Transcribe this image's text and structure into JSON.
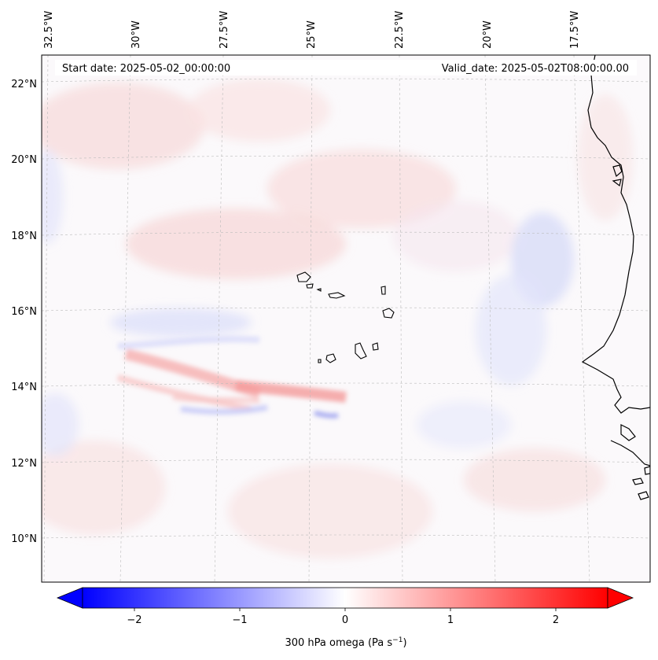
{
  "map": {
    "start_date": "Start date: 2025-05-02_00:00:00",
    "valid_date": "Valid_date: 2025-05-02T08:00:00.00",
    "lon_labels": [
      "32.5°W",
      "30°W",
      "27.5°W",
      "25°W",
      "22.5°W",
      "20°W",
      "17.5°W"
    ],
    "lat_labels": [
      "22°N",
      "20°N",
      "18°N",
      "16°N",
      "14°N",
      "12°N",
      "10°N"
    ]
  },
  "colorbar": {
    "label": "300 hPa omega (Pa s",
    "label_sup": "−1",
    "label_end": ")",
    "ticks": [
      "−2",
      "−1",
      "0",
      "1",
      "2"
    ],
    "range": [
      -2.6,
      2.6
    ],
    "colormap": "bwr",
    "colors": {
      "negative": "#0000ff",
      "neutral": "#ffffff",
      "positive": "#ff0000"
    }
  },
  "colors": {
    "coastline": "#000000",
    "gridline": "#bbbbbb",
    "frame": "#000000"
  }
}
